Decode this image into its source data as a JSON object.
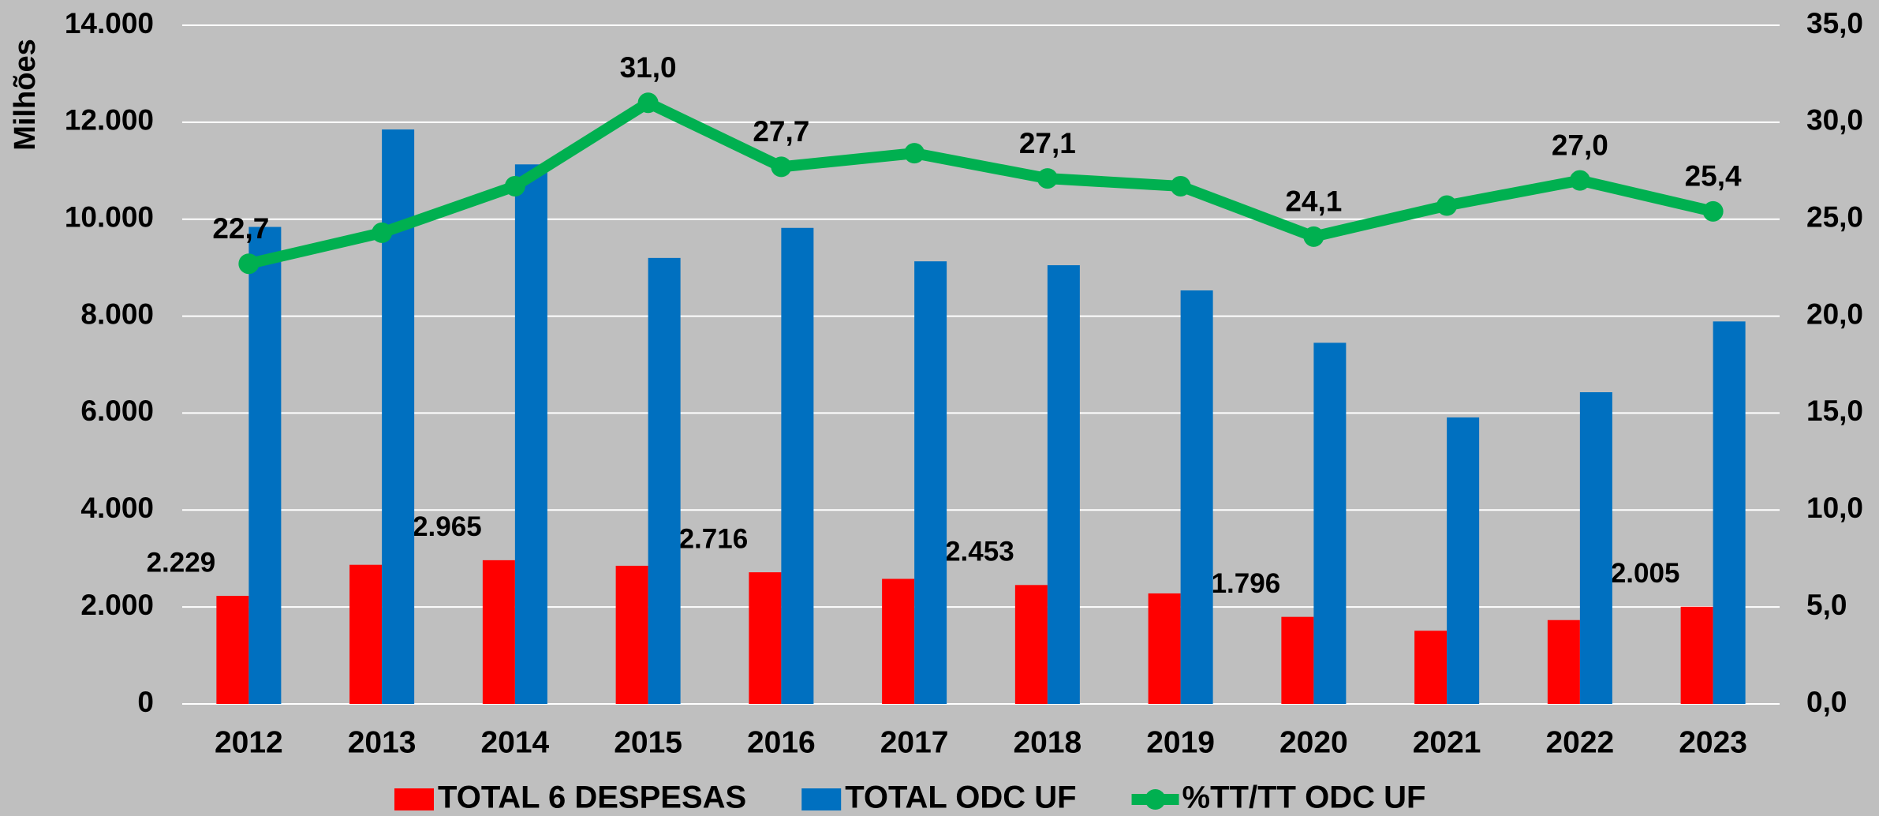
{
  "chart_data": {
    "type": "bar",
    "y_label": "Milhões",
    "categories": [
      "2012",
      "2013",
      "2014",
      "2015",
      "2016",
      "2017",
      "2018",
      "2019",
      "2020",
      "2021",
      "2022",
      "2023"
    ],
    "series": [
      {
        "name": "TOTAL 6 DESPESAS",
        "color": "#ff0000",
        "values": [
          2229,
          2870,
          2965,
          2850,
          2716,
          2580,
          2453,
          2280,
          1796,
          1510,
          1730,
          2005
        ],
        "value_labels": [
          "2.229",
          null,
          "2.965",
          null,
          "2.716",
          null,
          "2.453",
          null,
          "1.796",
          null,
          null,
          "2.005"
        ]
      },
      {
        "name": "TOTAL ODC UF",
        "color": "#0070c0",
        "values": [
          9840,
          11850,
          11130,
          9200,
          9820,
          9130,
          9050,
          8530,
          7450,
          5910,
          6430,
          7890
        ]
      },
      {
        "name": "%TT/TT ODC UF",
        "type": "line",
        "axis": "y2",
        "color": "#00b050",
        "values": [
          22.7,
          24.3,
          26.7,
          31.0,
          27.7,
          28.4,
          27.1,
          26.7,
          24.1,
          25.7,
          27.0,
          25.4
        ],
        "value_labels": [
          "22,7",
          null,
          null,
          "31,0",
          "27,7",
          null,
          "27,1",
          null,
          "24,1",
          null,
          "27,0",
          "25,4"
        ]
      }
    ],
    "ylim": [
      0,
      14000
    ],
    "yticks": [
      0,
      {
        "value": 2000,
        "label": "2.000"
      },
      {
        "value": 4000,
        "label": "4.000"
      },
      {
        "value": 6000,
        "label": "6.000"
      },
      {
        "value": 8000,
        "label": "8.000"
      },
      {
        "value": 10000,
        "label": "10.000"
      },
      {
        "value": 12000,
        "label": "12.000"
      },
      {
        "value": 14000,
        "label": "14.000"
      }
    ],
    "y2lim": [
      0,
      35
    ],
    "y2ticks": [
      {
        "value": 0,
        "label": "0,0"
      },
      {
        "value": 5,
        "label": "5,0"
      },
      {
        "value": 10,
        "label": "10,0"
      },
      {
        "value": 15,
        "label": "15,0"
      },
      {
        "value": 20,
        "label": "20,0"
      },
      {
        "value": 25,
        "label": "25,0"
      },
      {
        "value": 30,
        "label": "30,0"
      },
      {
        "value": 35,
        "label": "35,0"
      }
    ],
    "grid": true,
    "legend": "bottom"
  }
}
